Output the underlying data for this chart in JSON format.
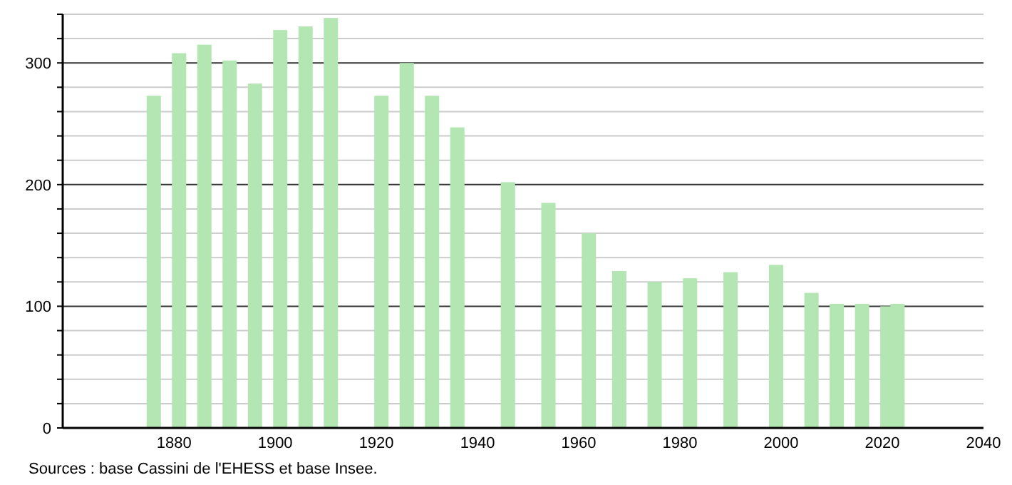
{
  "chart_data": {
    "type": "bar",
    "x": [
      1876,
      1881,
      1886,
      1891,
      1896,
      1901,
      1906,
      1911,
      1921,
      1926,
      1931,
      1936,
      1946,
      1954,
      1962,
      1968,
      1975,
      1982,
      1990,
      1999,
      2006,
      2011,
      2016,
      2021,
      2023
    ],
    "values": [
      273,
      308,
      315,
      302,
      283,
      327,
      330,
      337,
      273,
      300,
      273,
      247,
      202,
      185,
      160,
      129,
      120,
      123,
      128,
      134,
      111,
      102,
      102,
      100,
      102
    ],
    "color": "#b3e6b3",
    "xlim": [
      1858,
      2040
    ],
    "xticks": [
      1880,
      1900,
      1920,
      1940,
      1960,
      1980,
      2000,
      2020,
      2040
    ],
    "ylim": [
      0,
      340
    ],
    "yticks": [
      0,
      {
        "value": 20,
        "label": null
      },
      {
        "value": 40,
        "label": null
      },
      {
        "value": 60,
        "label": null
      },
      {
        "value": 80,
        "label": null
      },
      100,
      {
        "value": 120,
        "label": null
      },
      {
        "value": 140,
        "label": null
      },
      {
        "value": 160,
        "label": null
      },
      {
        "value": 180,
        "label": null
      },
      200,
      {
        "value": 220,
        "label": null
      },
      {
        "value": 240,
        "label": null
      },
      {
        "value": 260,
        "label": null
      },
      {
        "value": 280,
        "label": null
      },
      300,
      {
        "value": 320,
        "label": null
      },
      {
        "value": 340,
        "label": null
      }
    ],
    "grid": "y",
    "annotations": [
      "Sources : base Cassini de l'EHESS et base Insee."
    ]
  }
}
